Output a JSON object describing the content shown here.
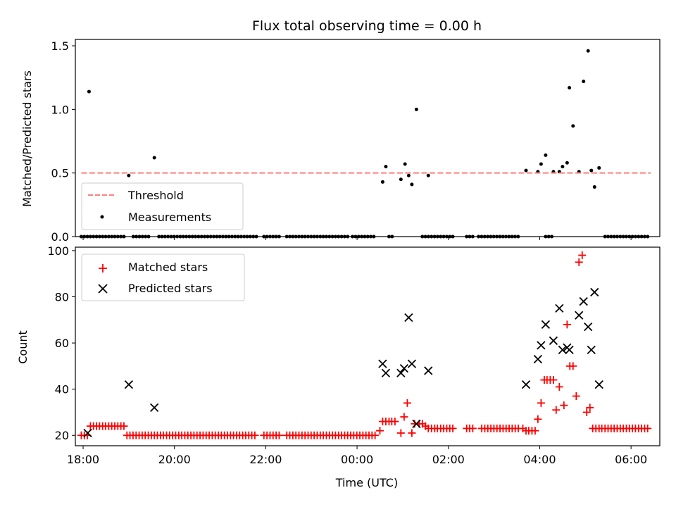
{
  "chart_data": [
    {
      "type": "scatter",
      "title": "Flux total observing time = 0.00 h",
      "xlabel": "",
      "ylabel": "Matched/Predicted stars",
      "xlim": [
        -6,
        6.8
      ],
      "ylim": [
        0,
        1.55
      ],
      "yticks": [
        0.0,
        0.5,
        1.0,
        1.5
      ],
      "ytick_labels": [
        "0.0",
        "0.5",
        "1.0",
        "1.5"
      ],
      "legend_location": "lower-left",
      "threshold": {
        "name": "Threshold",
        "value": 0.5,
        "x_range": [
          -5.87,
          6.6
        ],
        "color": "#ff7f7f",
        "style": "dashed"
      },
      "measurements": {
        "name": "Measurements",
        "color": "#000000",
        "points": [
          [
            -5.7,
            1.14
          ],
          [
            -4.83,
            0.48
          ],
          [
            -4.27,
            0.62
          ],
          [
            0.73,
            0.43
          ],
          [
            0.8,
            0.55
          ],
          [
            1.13,
            0.45
          ],
          [
            1.22,
            0.57
          ],
          [
            1.3,
            0.48
          ],
          [
            1.37,
            0.41
          ],
          [
            1.47,
            1.0
          ],
          [
            1.73,
            0.48
          ],
          [
            3.87,
            0.52
          ],
          [
            4.13,
            0.51
          ],
          [
            4.2,
            0.57
          ],
          [
            4.3,
            0.64
          ],
          [
            4.47,
            0.51
          ],
          [
            4.6,
            0.51
          ],
          [
            4.67,
            0.55
          ],
          [
            4.77,
            0.58
          ],
          [
            4.82,
            1.17
          ],
          [
            4.9,
            0.87
          ],
          [
            5.03,
            0.51
          ],
          [
            5.13,
            1.22
          ],
          [
            5.23,
            1.46
          ],
          [
            5.3,
            0.52
          ],
          [
            5.37,
            0.39
          ],
          [
            5.47,
            0.54
          ]
        ],
        "zero_segments": [
          [
            -5.87,
            -4.93
          ],
          [
            -4.73,
            -4.33
          ],
          [
            -4.17,
            -2.03
          ],
          [
            -1.87,
            -1.47
          ],
          [
            -1.37,
            -0.03
          ],
          [
            0.07,
            0.6
          ],
          [
            0.87,
            1.0
          ],
          [
            1.6,
            2.33
          ],
          [
            2.57,
            2.73
          ],
          [
            2.83,
            3.73
          ],
          [
            4.3,
            4.47
          ],
          [
            5.6,
            6.6
          ]
        ],
        "zero_step_hours": 0.0667
      }
    },
    {
      "type": "scatter",
      "title": "",
      "xlabel": "Time (UTC)",
      "ylabel": "Count",
      "xlim": [
        -6,
        6.8
      ],
      "ylim": [
        15.5,
        101.5
      ],
      "yticks": [
        20,
        40,
        60,
        80,
        100
      ],
      "ytick_labels": [
        "20",
        "40",
        "60",
        "80",
        "100"
      ],
      "xticks": [
        -5.83,
        -3.83,
        -1.83,
        0.17,
        2.17,
        4.17,
        6.17
      ],
      "xtick_labels": [
        "18:00",
        "20:00",
        "22:00",
        "00:00",
        "02:00",
        "04:00",
        "06:00"
      ],
      "legend_location": "upper-left",
      "matched": {
        "name": "Matched stars",
        "color": "#ff0000",
        "marker": "plus",
        "step_hours": 0.0667,
        "baseline_segments": [
          [
            -5.87,
            -5.73,
            20
          ],
          [
            -5.67,
            -4.93,
            24
          ],
          [
            -4.87,
            -2.03,
            20
          ],
          [
            -1.87,
            -1.47,
            20
          ],
          [
            -1.37,
            0.6,
            20
          ],
          [
            2.0,
            2.33,
            23
          ],
          [
            2.57,
            2.73,
            23
          ],
          [
            2.9,
            3.73,
            23
          ],
          [
            5.6,
            6.6,
            23
          ]
        ],
        "points": [
          [
            0.67,
            22
          ],
          [
            0.73,
            26
          ],
          [
            0.8,
            26
          ],
          [
            0.87,
            26
          ],
          [
            0.93,
            26
          ],
          [
            1.0,
            26
          ],
          [
            1.13,
            21
          ],
          [
            1.2,
            28
          ],
          [
            1.27,
            34
          ],
          [
            1.37,
            21
          ],
          [
            1.43,
            25
          ],
          [
            1.53,
            25
          ],
          [
            1.6,
            25
          ],
          [
            1.67,
            24
          ],
          [
            1.73,
            23
          ],
          [
            1.8,
            23
          ],
          [
            1.87,
            23
          ],
          [
            1.93,
            23
          ],
          [
            3.8,
            23
          ],
          [
            3.87,
            22
          ],
          [
            3.93,
            22
          ],
          [
            4.0,
            22
          ],
          [
            4.07,
            22
          ],
          [
            4.13,
            27
          ],
          [
            4.2,
            34
          ],
          [
            4.27,
            44
          ],
          [
            4.33,
            44
          ],
          [
            4.4,
            44
          ],
          [
            4.47,
            44
          ],
          [
            4.53,
            31
          ],
          [
            4.6,
            41
          ],
          [
            4.7,
            33
          ],
          [
            4.77,
            68
          ],
          [
            4.83,
            50
          ],
          [
            4.9,
            50
          ],
          [
            4.97,
            37
          ],
          [
            5.03,
            95
          ],
          [
            5.1,
            98
          ],
          [
            5.2,
            30
          ],
          [
            5.27,
            32
          ],
          [
            5.33,
            23
          ],
          [
            5.4,
            23
          ],
          [
            5.47,
            23
          ],
          [
            5.53,
            23
          ]
        ]
      },
      "predicted": {
        "name": "Predicted stars",
        "color": "#000000",
        "marker": "x",
        "points": [
          [
            -5.73,
            21
          ],
          [
            -4.83,
            42
          ],
          [
            -4.27,
            32
          ],
          [
            0.73,
            51
          ],
          [
            0.8,
            47
          ],
          [
            1.13,
            47
          ],
          [
            1.2,
            49
          ],
          [
            1.3,
            71
          ],
          [
            1.37,
            51
          ],
          [
            1.47,
            25
          ],
          [
            1.73,
            48
          ],
          [
            3.87,
            42
          ],
          [
            4.13,
            53
          ],
          [
            4.2,
            59
          ],
          [
            4.3,
            68
          ],
          [
            4.47,
            61
          ],
          [
            4.6,
            75
          ],
          [
            4.67,
            57
          ],
          [
            4.77,
            58
          ],
          [
            4.82,
            57
          ],
          [
            5.03,
            72
          ],
          [
            5.13,
            78
          ],
          [
            5.23,
            67
          ],
          [
            5.3,
            57
          ],
          [
            5.37,
            82
          ],
          [
            5.47,
            42
          ]
        ]
      }
    }
  ]
}
